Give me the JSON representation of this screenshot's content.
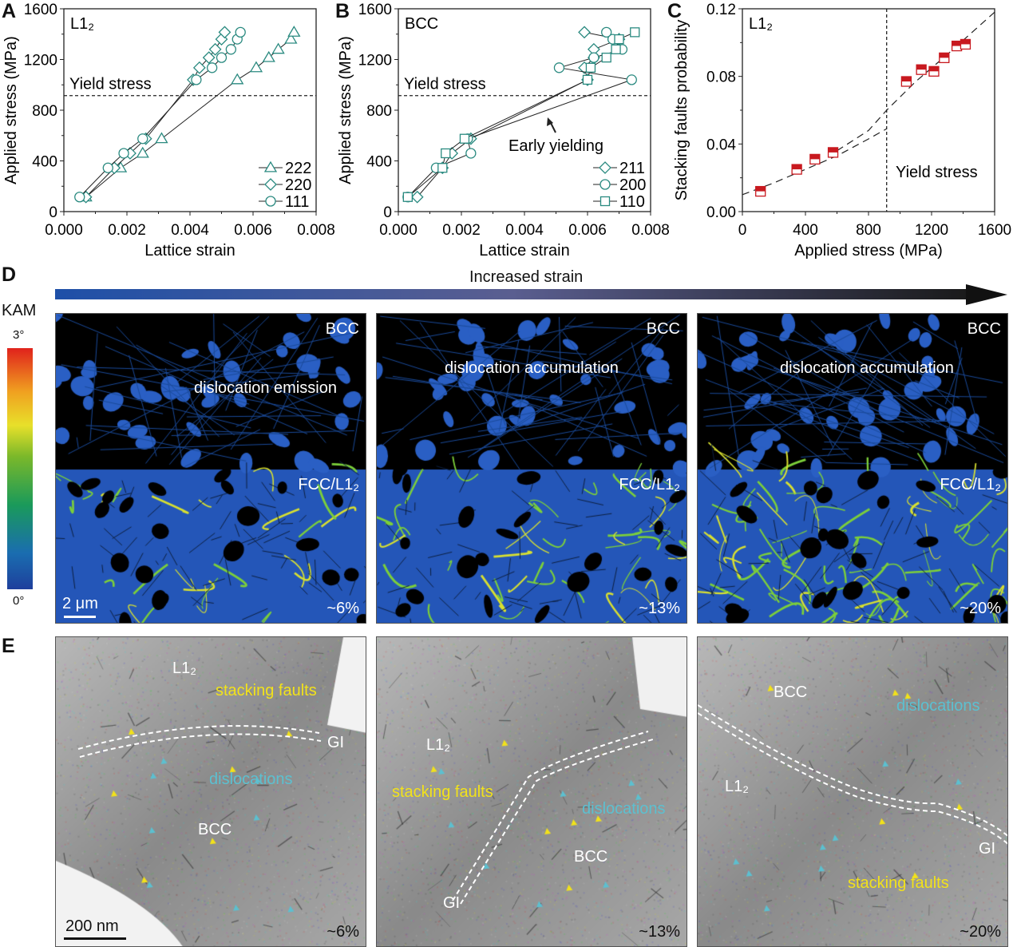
{
  "panel_letters": {
    "a": "A",
    "b": "B",
    "c": "C",
    "d": "D",
    "e": "E"
  },
  "chart_data": [
    {
      "id": "A",
      "type": "line",
      "phase_label": "L1₂",
      "xlabel": "Lattice strain",
      "ylabel": "Applied stress (MPa)",
      "xlim": [
        0,
        0.008
      ],
      "ylim": [
        0,
        1600
      ],
      "xticks": [
        "0.000",
        "0.002",
        "0.004",
        "0.006",
        "0.008"
      ],
      "yticks": [
        "0",
        "400",
        "800",
        "1200",
        "1600"
      ],
      "yield_stress": 915,
      "yield_label": "Yield stress",
      "series": [
        {
          "name": "222",
          "marker": "triangle",
          "x": [
            0.0007,
            0.0018,
            0.0025,
            0.0031,
            0.0055,
            0.0061,
            0.0065,
            0.0068,
            0.0072,
            0.0073
          ],
          "y": [
            115,
            345,
            460,
            575,
            1040,
            1135,
            1215,
            1280,
            1360,
            1415
          ]
        },
        {
          "name": "220",
          "marker": "diamond",
          "x": [
            0.0007,
            0.0016,
            0.0021,
            0.0026,
            0.0041,
            0.0043,
            0.0046,
            0.0048,
            0.005,
            0.0051
          ],
          "y": [
            115,
            345,
            460,
            575,
            1040,
            1135,
            1215,
            1280,
            1360,
            1415
          ]
        },
        {
          "name": "111",
          "marker": "circle",
          "x": [
            0.0005,
            0.0014,
            0.0019,
            0.0025,
            0.0042,
            0.0047,
            0.005,
            0.0053,
            0.0055,
            0.0056
          ],
          "y": [
            115,
            345,
            460,
            575,
            1040,
            1135,
            1215,
            1280,
            1360,
            1415
          ]
        }
      ]
    },
    {
      "id": "B",
      "type": "line",
      "phase_label": "BCC",
      "xlabel": "Lattice strain",
      "ylabel": "Applied stress (MPa)",
      "xlim": [
        0,
        0.008
      ],
      "ylim": [
        0,
        1600
      ],
      "xticks": [
        "0.000",
        "0.002",
        "0.004",
        "0.006",
        "0.008"
      ],
      "yticks": [
        "0",
        "400",
        "800",
        "1200",
        "1600"
      ],
      "yield_stress": 915,
      "yield_label": "Yield stress",
      "annotation": "Early yielding",
      "series": [
        {
          "name": "211",
          "marker": "diamond",
          "x": [
            0.0006,
            0.0014,
            0.0017,
            0.0023,
            0.006,
            0.0059,
            0.0062,
            0.0062,
            0.007,
            0.0059
          ],
          "y": [
            115,
            345,
            460,
            575,
            1040,
            1135,
            1215,
            1280,
            1360,
            1415
          ]
        },
        {
          "name": "200",
          "marker": "circle",
          "x": [
            0.0003,
            0.0012,
            0.0023,
            0.0022,
            0.0074,
            0.0051,
            0.0062,
            0.0071,
            0.0068,
            0.0066
          ],
          "y": [
            115,
            345,
            460,
            575,
            1040,
            1135,
            1215,
            1280,
            1360,
            1415
          ]
        },
        {
          "name": "110",
          "marker": "square",
          "x": [
            0.0003,
            0.0014,
            0.0015,
            0.0021,
            0.006,
            0.0061,
            0.0066,
            0.0069,
            0.007,
            0.0075
          ],
          "y": [
            115,
            345,
            460,
            575,
            1040,
            1135,
            1215,
            1280,
            1360,
            1415
          ]
        }
      ]
    },
    {
      "id": "C",
      "type": "scatter",
      "phase_label": "L1₂",
      "xlabel": "Applied stress (MPa)",
      "ylabel": "Stacking faults probability",
      "xlim": [
        0,
        1600
      ],
      "ylim": [
        0,
        0.12
      ],
      "xticks": [
        "0",
        "400",
        "800",
        "1200",
        "1600"
      ],
      "yticks": [
        "0.00",
        "0.04",
        "0.08",
        "0.12"
      ],
      "yield_stress": 915,
      "yield_label": "Yield stress",
      "series": [
        {
          "name": "SFP",
          "marker": "half-square",
          "x": [
            115,
            345,
            460,
            575,
            1040,
            1135,
            1215,
            1280,
            1360,
            1415
          ],
          "y": [
            0.012,
            0.025,
            0.031,
            0.035,
            0.077,
            0.084,
            0.083,
            0.091,
            0.098,
            0.099
          ]
        }
      ],
      "fit_lines": [
        {
          "x": [
            0,
            200,
            400,
            600,
            800,
            915
          ],
          "y": [
            0.01,
            0.017,
            0.025,
            0.033,
            0.043,
            0.049
          ]
        },
        {
          "x": [
            600,
            800,
            915,
            1100,
            1300,
            1600
          ],
          "y": [
            0.036,
            0.048,
            0.06,
            0.077,
            0.093,
            0.118
          ]
        }
      ]
    }
  ],
  "kam": {
    "title": "KAM",
    "max": "3°",
    "min": "0°"
  },
  "strain_bar": {
    "label": "Increased strain"
  },
  "ebsd": [
    {
      "top": "BCC",
      "bottom": "FCC/L1₂",
      "note": "dislocation emission",
      "strain": "~6%",
      "scale": "2 μm"
    },
    {
      "top": "BCC",
      "bottom": "FCC/L1₂",
      "note": "dislocation accumulation",
      "strain": "~13%"
    },
    {
      "top": "BCC",
      "bottom": "FCC/L1₂",
      "note": "dislocation accumulation",
      "strain": "~20%"
    }
  ],
  "tem": [
    {
      "l12": "L1₂",
      "sf": "stacking faults",
      "gi": "GI",
      "disl": "dislocations",
      "bcc": "BCC",
      "strain": "~6%",
      "scale": "200 nm"
    },
    {
      "l12": "L1₂",
      "sf": "stacking faults",
      "gi": "GI",
      "disl": "dislocations",
      "bcc": "BCC",
      "strain": "~13%"
    },
    {
      "l12": "L1₂",
      "sf": "stacking faults",
      "gi": "GI",
      "disl": "dislocations",
      "bcc": "BCC",
      "strain": "~20%"
    }
  ],
  "colors": {
    "teal": "#2a8a80",
    "red": "#c8191f",
    "yellow": "#f2e21a",
    "cyan": "#5cc0d0"
  }
}
